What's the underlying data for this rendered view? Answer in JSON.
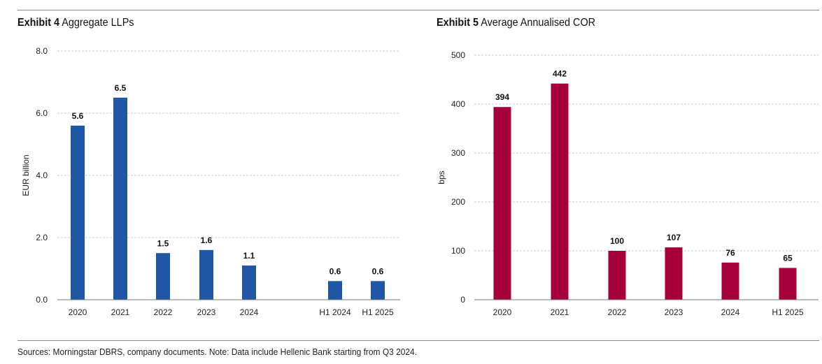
{
  "page": {
    "footer_note": "Sources: Morningstar DBRS, company documents. Note: Data include Hellenic Bank starting from Q3 2024."
  },
  "chart_data": [
    {
      "type": "bar",
      "exhibit": "Exhibit 4",
      "title": "Aggregate LLPs",
      "xlabel": "",
      "ylabel": "EUR billion",
      "ylim": [
        0,
        8
      ],
      "yticks": [
        "0.0",
        "2.0",
        "4.0",
        "6.0",
        "8.0"
      ],
      "grid": true,
      "color": "#1f57a6",
      "categories": [
        "2020",
        "2021",
        "2022",
        "2023",
        "2024",
        "H1 2024",
        "H1 2025"
      ],
      "values": [
        5.6,
        6.5,
        1.5,
        1.6,
        1.1,
        0.6,
        0.6
      ],
      "labels": [
        "5.6",
        "6.5",
        "1.5",
        "1.6",
        "1.1",
        "0.6",
        "0.6"
      ]
    },
    {
      "type": "bar",
      "exhibit": "Exhibit 5",
      "title": "Average Annualised COR",
      "xlabel": "",
      "ylabel": "bps",
      "ylim": [
        0,
        500
      ],
      "yticks": [
        "0",
        "100",
        "200",
        "300",
        "400",
        "500"
      ],
      "grid": true,
      "color": "#a5003a",
      "categories": [
        "2020",
        "2021",
        "2022",
        "2023",
        "2024",
        "H1 2025"
      ],
      "values": [
        394,
        442,
        100,
        107,
        76,
        65
      ],
      "labels": [
        "394",
        "442",
        "100",
        "107",
        "76",
        "65"
      ]
    }
  ]
}
